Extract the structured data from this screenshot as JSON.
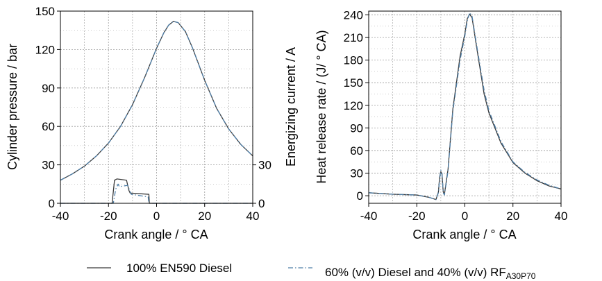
{
  "chart_data": [
    {
      "type": "line",
      "panel": "left",
      "xlabel": "Crank angle / ° CA",
      "ylabel": "Cylinder pressure / bar",
      "y2label": "Energizing current / A",
      "xlim": [
        -40,
        40
      ],
      "ylim": [
        0,
        150
      ],
      "y2lim": [
        0,
        150
      ],
      "xticks": [
        "-40",
        "-20",
        "0",
        "20",
        "40"
      ],
      "yticks": [
        "0",
        "30",
        "60",
        "90",
        "120",
        "150"
      ],
      "y2ticks": [
        "0",
        "30"
      ],
      "grid": true,
      "series": [
        {
          "name": "100% EN590 Diesel",
          "axis": "y",
          "x": [
            -40,
            -35,
            -30,
            -25,
            -20,
            -15,
            -10,
            -5,
            0,
            3,
            5,
            7,
            9,
            12,
            15,
            20,
            25,
            30,
            35,
            40
          ],
          "y": [
            18,
            23,
            29,
            37,
            47,
            60,
            77,
            98,
            121,
            133,
            139,
            142,
            141,
            134,
            121,
            96,
            74,
            58,
            46,
            37
          ]
        },
        {
          "name": "60% (v/v) Diesel and 40% (v/v) RFA30P70",
          "axis": "y",
          "x": [
            -40,
            -35,
            -30,
            -25,
            -20,
            -15,
            -10,
            -5,
            0,
            3,
            5,
            7,
            9,
            12,
            15,
            20,
            25,
            30,
            35,
            40
          ],
          "y": [
            18,
            23,
            29,
            37,
            47,
            60,
            77,
            98,
            121,
            133,
            139,
            142,
            141,
            134,
            121,
            96,
            74,
            58,
            46,
            37
          ]
        },
        {
          "name": "100% EN590 Diesel current",
          "axis": "y2",
          "x": [
            -40,
            -18.5,
            -17.5,
            -16.5,
            -12.5,
            -11.5,
            -11,
            -3.2,
            -3,
            40
          ],
          "y": [
            0,
            0,
            18,
            19,
            18,
            10,
            8,
            7,
            0,
            0
          ]
        },
        {
          "name": "60% (v/v) Diesel and 40% (v/v) RFA30P70 current",
          "axis": "y2",
          "x": [
            -40,
            -18,
            -17,
            -16,
            -15.5,
            -12,
            -11,
            -10.5,
            -3.5,
            -3.2,
            40
          ],
          "y": [
            0,
            0,
            11,
            15,
            13,
            14,
            9,
            7,
            5,
            0,
            0
          ]
        }
      ]
    },
    {
      "type": "line",
      "panel": "right",
      "xlabel": "Crank angle / ° CA",
      "ylabel": "Heat release rate / (J/ ° CA)",
      "xlim": [
        -40,
        40
      ],
      "ylim": [
        -10,
        245
      ],
      "xticks": [
        "-40",
        "-20",
        "0",
        "20",
        "40"
      ],
      "yticks": [
        "0",
        "30",
        "60",
        "90",
        "120",
        "150",
        "180",
        "210",
        "240"
      ],
      "grid": true,
      "series": [
        {
          "name": "100% EN590 Diesel",
          "x": [
            -40,
            -30,
            -20,
            -15,
            -12,
            -11,
            -10.5,
            -10,
            -9.5,
            -9,
            -8.5,
            -7,
            -5,
            -2,
            0,
            1,
            2,
            3,
            5,
            8,
            10,
            15,
            20,
            25,
            30,
            35,
            40
          ],
          "y": [
            4,
            2,
            1,
            -2,
            -5,
            5,
            25,
            32,
            28,
            5,
            2,
            35,
            115,
            185,
            215,
            235,
            241,
            236,
            195,
            135,
            110,
            70,
            44,
            30,
            20,
            13,
            9
          ]
        },
        {
          "name": "60% (v/v) Diesel and 40% (v/v) RFA30P70",
          "x": [
            -40,
            -30,
            -20,
            -15,
            -12,
            -11,
            -10.5,
            -10,
            -9.5,
            -9,
            -8.5,
            -7,
            -5,
            -2,
            0,
            1,
            2,
            3,
            5,
            8,
            10,
            15,
            20,
            25,
            30,
            35,
            40
          ],
          "y": [
            4,
            2,
            1,
            -2,
            -5,
            4,
            22,
            34,
            30,
            4,
            1,
            33,
            112,
            180,
            212,
            232,
            243,
            238,
            198,
            140,
            113,
            72,
            45,
            31,
            21,
            14,
            9
          ]
        }
      ]
    }
  ],
  "legend": {
    "items": [
      {
        "label": "100% EN590 Diesel",
        "sub": "",
        "color": "#3a3a3a",
        "dash": "solid"
      },
      {
        "label": "60% (v/v) Diesel and 40% (v/v) RF",
        "sub": "A30P70",
        "color": "#4f7fa8",
        "dash": "dashdot"
      }
    ]
  },
  "colors": {
    "series1": "#3a3a3a",
    "series2": "#4f7fa8",
    "grid": "#9a9a9a"
  }
}
